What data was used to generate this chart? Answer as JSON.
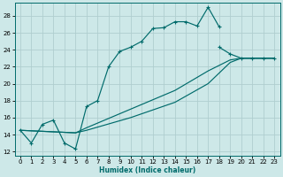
{
  "xlabel": "Humidex (Indice chaleur)",
  "background_color": "#cde8e8",
  "grid_color": "#b0cecf",
  "line_color": "#006b6b",
  "xlim": [
    -0.5,
    23.5
  ],
  "ylim": [
    11.5,
    29.5
  ],
  "xticks": [
    0,
    1,
    2,
    3,
    4,
    5,
    6,
    7,
    8,
    9,
    10,
    11,
    12,
    13,
    14,
    15,
    16,
    17,
    18,
    19,
    20,
    21,
    22,
    23
  ],
  "yticks": [
    12,
    14,
    16,
    18,
    20,
    22,
    24,
    26,
    28
  ],
  "curve_marked": {
    "x": [
      0,
      1,
      2,
      3,
      4,
      5,
      6,
      7,
      8,
      9,
      10,
      11,
      12,
      13,
      14,
      15,
      16,
      17,
      18
    ],
    "y": [
      14.5,
      13.0,
      15.2,
      15.7,
      13.0,
      12.3,
      17.3,
      18.0,
      22.0,
      23.8,
      24.3,
      25.0,
      26.5,
      26.6,
      27.3,
      27.3,
      26.8,
      29.0,
      26.7
    ]
  },
  "line1": {
    "x": [
      0,
      5,
      6,
      10,
      14,
      17,
      19,
      20,
      21,
      22,
      23
    ],
    "y": [
      14.5,
      14.2,
      14.5,
      16.0,
      17.8,
      20.0,
      22.5,
      23.0,
      23.0,
      23.0,
      23.0
    ]
  },
  "line2": {
    "x": [
      0,
      5,
      6,
      10,
      14,
      17,
      19,
      20,
      21,
      22,
      23
    ],
    "y": [
      14.5,
      14.2,
      14.8,
      17.0,
      19.2,
      21.5,
      22.8,
      23.0,
      23.0,
      23.0,
      23.0
    ]
  },
  "line3": {
    "x": [
      18,
      19,
      20,
      21,
      22,
      23
    ],
    "y": [
      24.3,
      23.5,
      23.0,
      23.0,
      23.0,
      23.0
    ]
  }
}
